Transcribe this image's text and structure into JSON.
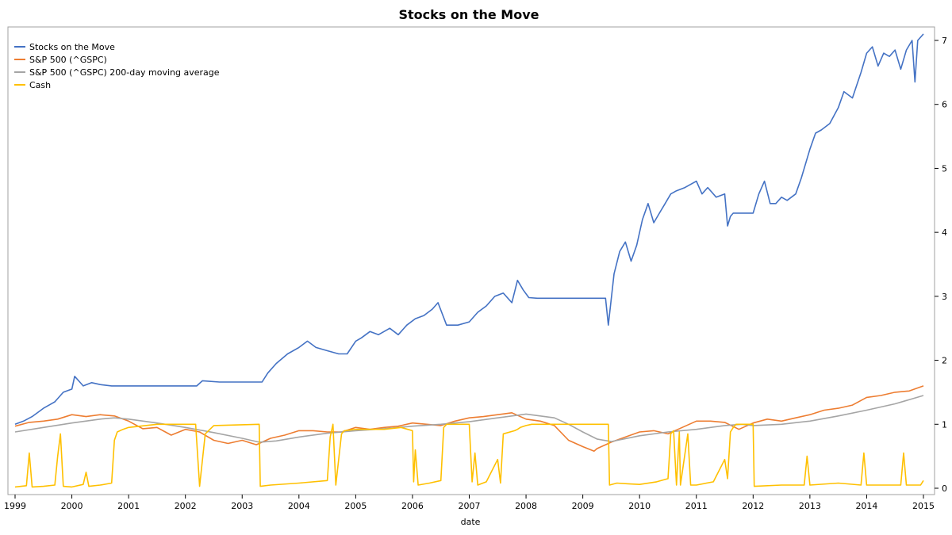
{
  "chart_data": {
    "type": "line",
    "title": "Stocks on the Move",
    "xlabel": "date",
    "ylabel": "",
    "xlim": [
      1999.0,
      2015.1
    ],
    "ylim": [
      -0.1,
      7.2
    ],
    "x_ticks": [
      "1999",
      "2000",
      "2001",
      "2002",
      "2003",
      "2004",
      "2005",
      "2006",
      "2007",
      "2008",
      "2009",
      "2010",
      "2011",
      "2012",
      "2013",
      "2014",
      "2015"
    ],
    "y_ticks": [
      "0",
      "1",
      "2",
      "3",
      "4",
      "5",
      "6",
      "7"
    ],
    "y_axis_side": "right",
    "grid": false,
    "legend_position": "top-left",
    "legend": [
      "Stocks on the Move",
      "S&P 500 (^GSPC)",
      "S&P 500 (^GSPC) 200-day moving average",
      "Cash"
    ],
    "series": [
      {
        "name": "Stocks on the Move",
        "color": "#4472C4",
        "x": [
          1999.0,
          1999.15,
          1999.3,
          1999.5,
          1999.7,
          1999.85,
          2000.0,
          2000.05,
          2000.12,
          2000.2,
          2000.35,
          2000.5,
          2000.7,
          2001.0,
          2001.5,
          2002.0,
          2002.2,
          2002.3,
          2002.6,
          2003.0,
          2003.35,
          2003.45,
          2003.6,
          2003.8,
          2004.0,
          2004.15,
          2004.3,
          2004.5,
          2004.7,
          2004.85,
          2005.0,
          2005.1,
          2005.25,
          2005.4,
          2005.6,
          2005.75,
          2005.9,
          2006.05,
          2006.2,
          2006.35,
          2006.45,
          2006.6,
          2006.8,
          2007.0,
          2007.15,
          2007.3,
          2007.45,
          2007.6,
          2007.75,
          2007.85,
          2007.95,
          2008.05,
          2008.2,
          2008.5,
          2008.8,
          2009.0,
          2009.2,
          2009.4,
          2009.45,
          2009.5,
          2009.55,
          2009.65,
          2009.75,
          2009.85,
          2009.95,
          2010.05,
          2010.15,
          2010.25,
          2010.35,
          2010.45,
          2010.55,
          2010.65,
          2010.8,
          2011.0,
          2011.1,
          2011.2,
          2011.35,
          2011.5,
          2011.55,
          2011.6,
          2011.65,
          2011.75,
          2011.9,
          2012.0,
          2012.1,
          2012.2,
          2012.3,
          2012.4,
          2012.5,
          2012.6,
          2012.75,
          2012.85,
          2013.0,
          2013.1,
          2013.2,
          2013.35,
          2013.5,
          2013.6,
          2013.75,
          2013.9,
          2014.0,
          2014.1,
          2014.2,
          2014.3,
          2014.4,
          2014.5,
          2014.6,
          2014.7,
          2014.8,
          2014.85,
          2014.9,
          2015.0
        ],
        "y": [
          1.0,
          1.05,
          1.12,
          1.25,
          1.35,
          1.5,
          1.55,
          1.75,
          1.68,
          1.6,
          1.65,
          1.62,
          1.6,
          1.6,
          1.6,
          1.6,
          1.6,
          1.68,
          1.66,
          1.66,
          1.66,
          1.8,
          1.95,
          2.1,
          2.2,
          2.3,
          2.2,
          2.15,
          2.1,
          2.1,
          2.3,
          2.35,
          2.45,
          2.4,
          2.5,
          2.4,
          2.55,
          2.65,
          2.7,
          2.8,
          2.9,
          2.55,
          2.55,
          2.6,
          2.75,
          2.85,
          3.0,
          3.05,
          2.9,
          3.25,
          3.1,
          2.98,
          2.97,
          2.97,
          2.97,
          2.97,
          2.97,
          2.97,
          2.55,
          2.95,
          3.35,
          3.7,
          3.85,
          3.55,
          3.8,
          4.2,
          4.45,
          4.15,
          4.3,
          4.45,
          4.6,
          4.65,
          4.7,
          4.8,
          4.6,
          4.7,
          4.55,
          4.6,
          4.1,
          4.25,
          4.3,
          4.3,
          4.3,
          4.3,
          4.6,
          4.8,
          4.45,
          4.45,
          4.55,
          4.5,
          4.6,
          4.85,
          5.3,
          5.55,
          5.6,
          5.7,
          5.95,
          6.2,
          6.1,
          6.5,
          6.8,
          6.9,
          6.6,
          6.8,
          6.75,
          6.85,
          6.55,
          6.85,
          7.0,
          6.35,
          7.0,
          7.1
        ]
      },
      {
        "name": "S&P 500 (^GSPC)",
        "color": "#ED7D31",
        "x": [
          1999.0,
          1999.25,
          1999.5,
          1999.75,
          2000.0,
          2000.25,
          2000.5,
          2000.75,
          2001.0,
          2001.25,
          2001.5,
          2001.75,
          2002.0,
          2002.25,
          2002.5,
          2002.75,
          2003.0,
          2003.25,
          2003.5,
          2003.75,
          2004.0,
          2004.25,
          2004.5,
          2004.75,
          2005.0,
          2005.25,
          2005.5,
          2005.75,
          2006.0,
          2006.25,
          2006.5,
          2006.75,
          2007.0,
          2007.25,
          2007.5,
          2007.75,
          2008.0,
          2008.25,
          2008.5,
          2008.75,
          2009.0,
          2009.2,
          2009.25,
          2009.5,
          2009.75,
          2010.0,
          2010.25,
          2010.5,
          2010.75,
          2011.0,
          2011.25,
          2011.5,
          2011.75,
          2012.0,
          2012.25,
          2012.5,
          2012.75,
          2013.0,
          2013.25,
          2013.5,
          2013.75,
          2014.0,
          2014.25,
          2014.5,
          2014.75,
          2015.0
        ],
        "y": [
          0.97,
          1.03,
          1.05,
          1.08,
          1.15,
          1.12,
          1.15,
          1.13,
          1.05,
          0.93,
          0.95,
          0.83,
          0.92,
          0.88,
          0.75,
          0.7,
          0.75,
          0.68,
          0.78,
          0.83,
          0.9,
          0.9,
          0.88,
          0.88,
          0.95,
          0.92,
          0.95,
          0.97,
          1.02,
          1.0,
          0.98,
          1.05,
          1.1,
          1.12,
          1.15,
          1.18,
          1.08,
          1.05,
          0.98,
          0.75,
          0.65,
          0.58,
          0.62,
          0.72,
          0.8,
          0.88,
          0.9,
          0.85,
          0.95,
          1.05,
          1.05,
          1.03,
          0.92,
          1.02,
          1.08,
          1.05,
          1.1,
          1.15,
          1.22,
          1.25,
          1.3,
          1.42,
          1.45,
          1.5,
          1.52,
          1.6
        ]
      },
      {
        "name": "S&P 500 (^GSPC) 200-day moving average",
        "color": "#A5A5A5",
        "x": [
          1999.0,
          1999.5,
          2000.0,
          2000.5,
          2000.75,
          2001.0,
          2001.5,
          2002.0,
          2002.5,
          2003.0,
          2003.3,
          2003.6,
          2004.0,
          2004.5,
          2005.0,
          2005.5,
          2006.0,
          2006.5,
          2007.0,
          2007.5,
          2008.0,
          2008.5,
          2008.75,
          2009.0,
          2009.25,
          2009.5,
          2010.0,
          2010.5,
          2011.0,
          2011.5,
          2011.8,
          2012.0,
          2012.5,
          2013.0,
          2013.5,
          2014.0,
          2014.5,
          2015.0
        ],
        "y": [
          0.88,
          0.95,
          1.02,
          1.08,
          1.1,
          1.08,
          1.02,
          0.95,
          0.87,
          0.78,
          0.72,
          0.74,
          0.8,
          0.86,
          0.9,
          0.93,
          0.97,
          1.0,
          1.04,
          1.1,
          1.16,
          1.1,
          1.0,
          0.88,
          0.77,
          0.73,
          0.82,
          0.88,
          0.92,
          0.98,
          1.0,
          0.98,
          1.0,
          1.05,
          1.13,
          1.22,
          1.32,
          1.45
        ]
      },
      {
        "name": "Cash",
        "color": "#FFC000",
        "x": [
          1999.0,
          1999.2,
          1999.25,
          1999.3,
          1999.5,
          1999.7,
          1999.75,
          1999.8,
          1999.85,
          2000.0,
          2000.2,
          2000.25,
          2000.3,
          2000.5,
          2000.7,
          2000.75,
          2000.8,
          2000.9,
          2001.0,
          2001.5,
          2002.0,
          2002.15,
          2002.18,
          2002.25,
          2002.35,
          2002.5,
          2003.3,
          2003.32,
          2003.5,
          2004.0,
          2004.5,
          2004.55,
          2004.6,
          2004.65,
          2004.75,
          2004.8,
          2005.0,
          2005.5,
          2005.8,
          2006.0,
          2006.02,
          2006.05,
          2006.1,
          2006.3,
          2006.5,
          2006.55,
          2006.6,
          2006.7,
          2007.0,
          2007.05,
          2007.1,
          2007.15,
          2007.3,
          2007.5,
          2007.55,
          2007.6,
          2007.8,
          2007.85,
          2007.9,
          2008.0,
          2008.1,
          2008.5,
          2009.0,
          2009.45,
          2009.47,
          2009.6,
          2009.8,
          2010.0,
          2010.3,
          2010.5,
          2010.55,
          2010.6,
          2010.65,
          2010.7,
          2010.72,
          2010.85,
          2010.9,
          2011.0,
          2011.3,
          2011.5,
          2011.55,
          2011.6,
          2011.65,
          2011.7,
          2011.75,
          2011.8,
          2011.9,
          2012.0,
          2012.02,
          2012.5,
          2012.9,
          2012.95,
          2013.0,
          2013.5,
          2013.9,
          2013.95,
          2014.0,
          2014.5,
          2014.6,
          2014.65,
          2014.7,
          2014.95,
          2015.0
        ],
        "y": [
          0.02,
          0.04,
          0.55,
          0.02,
          0.03,
          0.05,
          0.5,
          0.85,
          0.03,
          0.02,
          0.06,
          0.25,
          0.03,
          0.05,
          0.08,
          0.75,
          0.88,
          0.92,
          0.95,
          1.0,
          1.0,
          1.0,
          1.0,
          0.03,
          0.85,
          0.98,
          1.0,
          0.03,
          0.05,
          0.08,
          0.12,
          0.8,
          1.0,
          0.05,
          0.85,
          0.9,
          0.92,
          0.92,
          0.95,
          0.9,
          0.1,
          0.6,
          0.05,
          0.08,
          0.12,
          0.95,
          1.0,
          1.0,
          1.0,
          0.1,
          0.55,
          0.05,
          0.1,
          0.45,
          0.08,
          0.85,
          0.9,
          0.92,
          0.95,
          0.98,
          1.0,
          1.0,
          1.0,
          1.0,
          0.05,
          0.08,
          0.07,
          0.06,
          0.1,
          0.15,
          0.85,
          0.9,
          0.05,
          0.88,
          0.05,
          0.85,
          0.05,
          0.05,
          0.1,
          0.45,
          0.15,
          0.88,
          0.95,
          1.0,
          1.0,
          1.0,
          1.0,
          1.0,
          0.03,
          0.05,
          0.05,
          0.5,
          0.05,
          0.08,
          0.05,
          0.55,
          0.05,
          0.05,
          0.05,
          0.55,
          0.05,
          0.05,
          0.12
        ]
      }
    ]
  }
}
